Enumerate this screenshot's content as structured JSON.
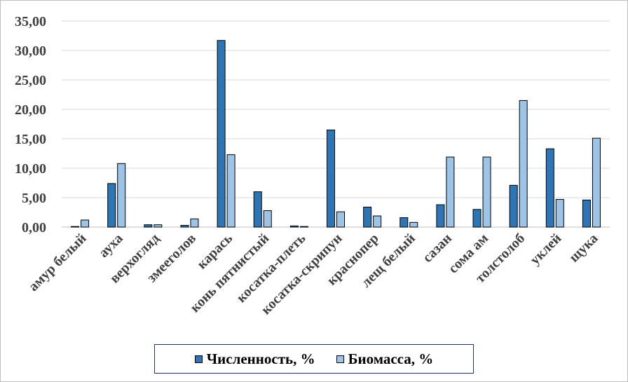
{
  "chart_data": {
    "type": "bar",
    "categories": [
      "амур белый",
      "ауха",
      "верхогляд",
      "змееголов",
      "карась",
      "конь пятнистый",
      "косатка-плеть",
      "косатка-скрипун",
      "краснопер",
      "лещ белый",
      "сазан",
      "сома ам",
      "толстолоб",
      "уклей",
      "щука"
    ],
    "series": [
      {
        "name": "Численность, %",
        "color": "#2e75b6",
        "values": [
          0.1,
          7.4,
          0.4,
          0.3,
          31.7,
          6.0,
          0.2,
          16.5,
          3.4,
          1.6,
          3.8,
          3.0,
          7.1,
          13.3,
          4.6
        ]
      },
      {
        "name": "Биомасса, %",
        "color": "#9dc3e6",
        "values": [
          1.2,
          10.8,
          0.4,
          1.4,
          12.3,
          2.8,
          0.1,
          2.6,
          1.9,
          0.8,
          11.9,
          11.9,
          21.5,
          4.7,
          15.1
        ]
      }
    ],
    "ylim": [
      0,
      35
    ],
    "yticks": [
      "0,00",
      "5,00",
      "10,00",
      "15,00",
      "20,00",
      "25,00",
      "30,00",
      "35,00"
    ],
    "grid": true,
    "legend_position": "bottom"
  }
}
